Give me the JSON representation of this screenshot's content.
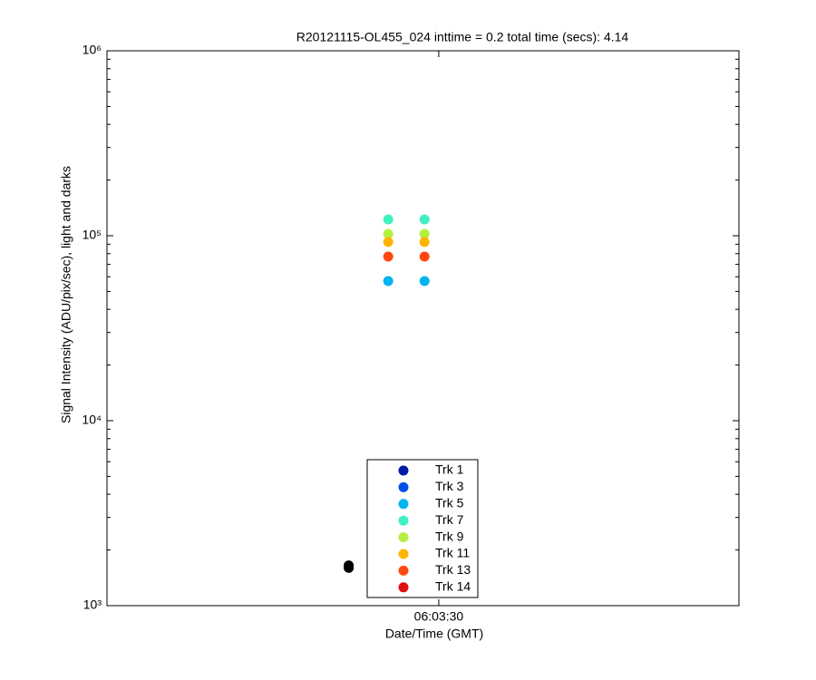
{
  "chart_data": {
    "type": "scatter",
    "title": "R20121115-OL455_024 inttime = 0.2 total time (secs): 4.14",
    "x_label": "Date/Time (GMT)",
    "y_label": "Signal Intensity (ADU/pix/sec), light and darks",
    "y_log": true,
    "xlim": [
      21789,
      21829
    ],
    "xticks": [
      {
        "value": 21810,
        "label": "06:03:30"
      }
    ],
    "ylim": [
      1000,
      1000000
    ],
    "yticks": [
      {
        "value": 1000,
        "label": "10³"
      },
      {
        "value": 10000,
        "label": "10⁴"
      },
      {
        "value": 100000,
        "label": "10⁵"
      },
      {
        "value": 1000000,
        "label": "10⁶"
      }
    ],
    "legend_position": "bottom",
    "series": [
      {
        "name": "Trk 1",
        "color": "#0019a8",
        "x": [
          21806.8,
          21809.1
        ],
        "values": [
          null,
          null
        ]
      },
      {
        "name": "Trk 3",
        "color": "#0050e8",
        "x": [
          21806.8,
          21809.1
        ],
        "values": [
          null,
          null
        ]
      },
      {
        "name": "Trk 5",
        "color": "#00b4f0",
        "x": [
          21806.8,
          21809.1
        ],
        "values": [
          56900,
          56900
        ]
      },
      {
        "name": "Trk 7",
        "color": "#40f0c0",
        "x": [
          21806.8,
          21809.1
        ],
        "values": [
          122500,
          122500
        ]
      },
      {
        "name": "Trk 9",
        "color": "#b4f040",
        "x": [
          21806.8,
          21809.1
        ],
        "values": [
          102300,
          102300
        ]
      },
      {
        "name": "Trk 11",
        "color": "#ffb400",
        "x": [
          21806.8,
          21809.1
        ],
        "values": [
          92500,
          92500
        ]
      },
      {
        "name": "Trk 13",
        "color": "#ff4810",
        "x": [
          21806.8,
          21809.1
        ],
        "values": [
          77100,
          77100
        ]
      },
      {
        "name": "Trk 14",
        "color": "#e01010",
        "x": [
          21806.8,
          21809.1
        ],
        "values": [
          null,
          null
        ]
      },
      {
        "color": "#000000",
        "x": [
          21804.3,
          21804.3
        ],
        "values": [
          1600,
          1650
        ]
      }
    ]
  }
}
